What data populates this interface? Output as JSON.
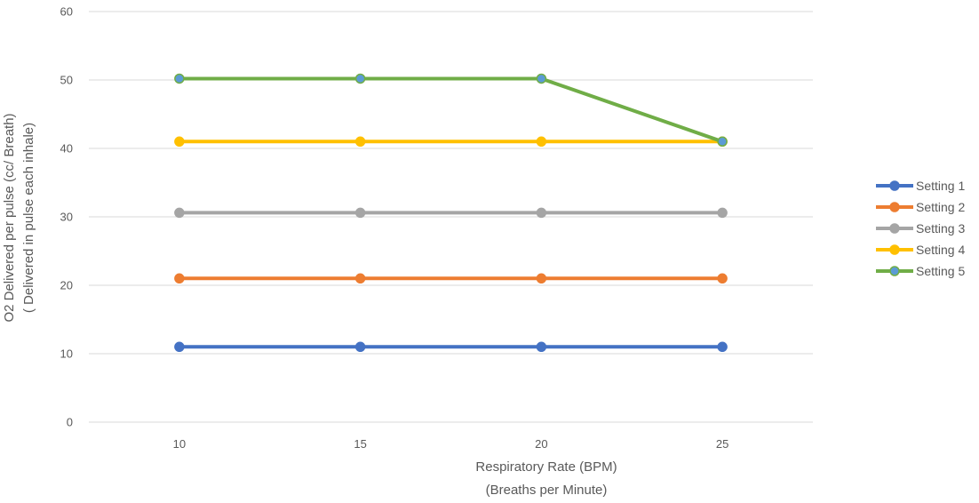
{
  "chart_data": {
    "type": "line",
    "x": [
      10,
      15,
      20,
      25
    ],
    "x_tick_labels": [
      "10",
      "15",
      "20",
      "25"
    ],
    "ylim": [
      0,
      60
    ],
    "y_ticks": [
      0,
      10,
      20,
      30,
      40,
      50,
      60
    ],
    "y_tick_labels": [
      "0",
      "10",
      "20",
      "30",
      "40",
      "50",
      "60"
    ],
    "xlabel": [
      "Respiratory Rate (BPM)",
      "(Breaths  per Minute)"
    ],
    "ylabel": [
      "O2 Delivered per pulse (cc/ Breath)",
      "( Delivered in pulse each inhale)"
    ],
    "grid": "horizontal",
    "legend_position": "right",
    "series": [
      {
        "name": "Setting 1",
        "color": "#4472c4",
        "values": [
          11,
          11,
          11,
          11
        ]
      },
      {
        "name": "Setting 2",
        "color": "#ed7d31",
        "values": [
          21,
          21,
          21,
          21
        ]
      },
      {
        "name": "Setting 3",
        "color": "#a5a5a5",
        "values": [
          30.6,
          30.6,
          30.6,
          30.6
        ]
      },
      {
        "name": "Setting 4",
        "color": "#ffc000",
        "values": [
          41,
          41,
          41,
          41
        ]
      },
      {
        "name": "Setting 5",
        "color": "#70ad47",
        "marker_color": "#5b9bd5",
        "values": [
          50.2,
          50.2,
          50.2,
          41
        ]
      }
    ]
  }
}
